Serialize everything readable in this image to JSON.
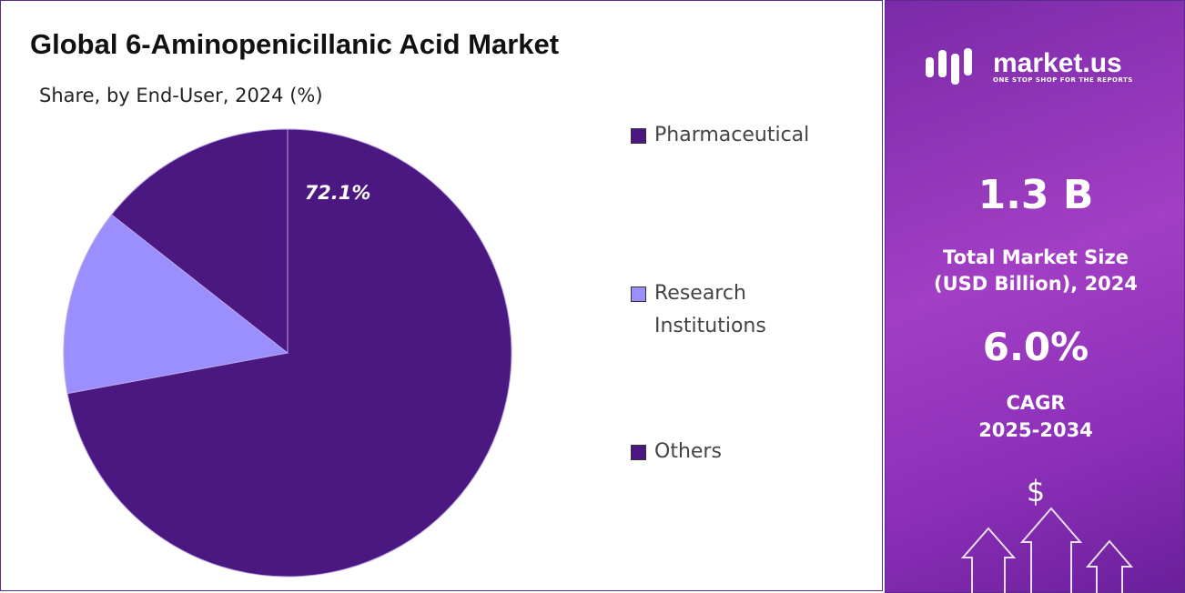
{
  "chart_data": {
    "type": "pie",
    "title": "Global 6-Aminopenicillanic Acid Market",
    "subtitle": "Share, by End-User, 2024 (%)",
    "categories": [
      "Pharmaceutical",
      "Research Institutions",
      "Others"
    ],
    "values": [
      72.1,
      13.5,
      14.4
    ],
    "value_labels": [
      "72.1%",
      null,
      null
    ],
    "colors": [
      "#4b1780",
      "#9b8fff",
      "#4b1780"
    ],
    "legend": "right"
  },
  "side_panel": {
    "brand": "market.us",
    "tagline": "ONE STOP SHOP FOR THE REPORTS",
    "market_size": "1.3 B",
    "market_size_label": "Total Market Size (USD Billion), 2024",
    "cagr": "6.0%",
    "cagr_label": "CAGR",
    "cagr_period": "2025-2034",
    "icon": "$"
  }
}
